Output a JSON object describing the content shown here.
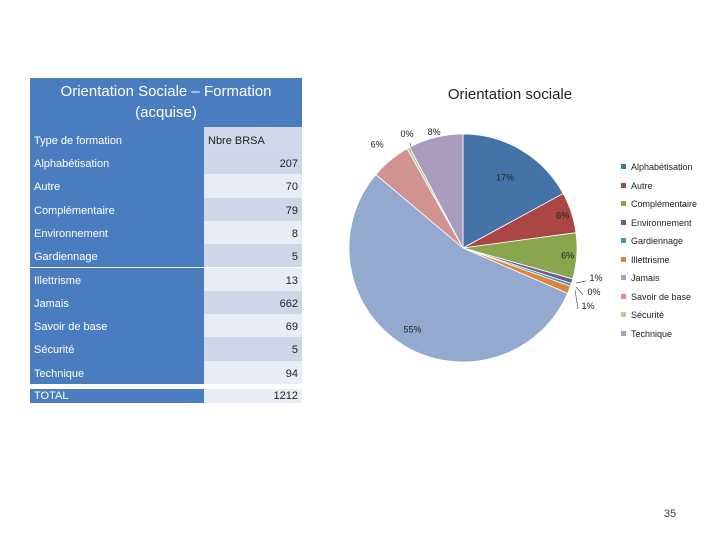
{
  "table": {
    "title_line1": "Orientation Sociale – Formation",
    "title_line2": "(acquise)",
    "header_type": "Type de formation",
    "header_value": "Nbre BRSA",
    "rows": [
      {
        "label": "Alphabétisation",
        "value": "207"
      },
      {
        "label": "Autre",
        "value": "70"
      },
      {
        "label": "Complémentaire",
        "value": "79"
      },
      {
        "label": "Environnement",
        "value": "8"
      },
      {
        "label": "Gardiennage",
        "value": "5"
      },
      {
        "label": "Illettrisme",
        "value": "13"
      },
      {
        "label": "Jamais",
        "value": "662"
      },
      {
        "label": "Savoir de base",
        "value": "69"
      },
      {
        "label": "Sécurité",
        "value": "5"
      },
      {
        "label": "Technique",
        "value": "94"
      }
    ],
    "total_label": "TOTAL",
    "total_value": "1212"
  },
  "chart_data": {
    "type": "pie",
    "title": "Orientation sociale",
    "categories": [
      "Alphabétisation",
      "Autre",
      "Complémentaire",
      "Environnement",
      "Gardiennage",
      "Illettrisme",
      "Jamais",
      "Savoir de base",
      "Sécurité",
      "Technique"
    ],
    "values": [
      207,
      70,
      79,
      8,
      5,
      13,
      662,
      69,
      5,
      94
    ],
    "data_labels": [
      "17%",
      "6%",
      "6%",
      "1%",
      "0%",
      "1%",
      "55%",
      "6%",
      "0%",
      "8%"
    ],
    "colors": [
      "#4572a7",
      "#aa4643",
      "#89a54e",
      "#71588f",
      "#4198af",
      "#db843d",
      "#93a9cf",
      "#d19392",
      "#b9cd96",
      "#a99bbd"
    ],
    "legend_position": "right"
  },
  "page_number": "35"
}
